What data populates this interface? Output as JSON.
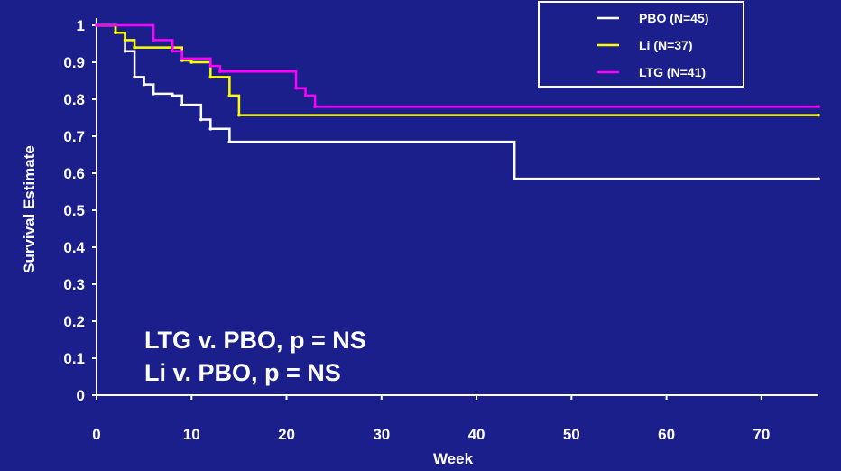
{
  "chart_data": {
    "type": "line",
    "step": true,
    "xlabel": "Week",
    "ylabel": "Survival Estimate",
    "xlim": [
      0,
      76
    ],
    "ylim": [
      0,
      1
    ],
    "xticks": [
      0,
      10,
      20,
      30,
      40,
      50,
      60,
      70
    ],
    "yticks": [
      0,
      0.1,
      0.2,
      0.3,
      0.4,
      0.5,
      0.6,
      0.7,
      0.8,
      0.9,
      1
    ],
    "ytick_labels": [
      "0",
      "0.1",
      "0.2",
      "0.3",
      "0.4",
      "0.5",
      "0.6",
      "0.7",
      "0.8",
      "0.9",
      "1"
    ],
    "grid": false,
    "legend_position": "top-right",
    "annotations": [
      "LTG v. PBO, p = NS",
      "Li v. PBO, p = NS"
    ],
    "background": "#1A1F8C",
    "series": [
      {
        "name": "PBO (N=45)",
        "color": "#FFFFFF",
        "x": [
          0,
          2,
          3,
          4,
          5,
          6,
          8,
          9,
          11,
          12,
          14,
          44,
          76
        ],
        "y": [
          1.0,
          0.98,
          0.93,
          0.86,
          0.84,
          0.815,
          0.81,
          0.785,
          0.745,
          0.72,
          0.685,
          0.585,
          0.585
        ]
      },
      {
        "name": "Li (N=37)",
        "color": "#FFFF00",
        "x": [
          0,
          2,
          3,
          4,
          9,
          10,
          12,
          14,
          15,
          76
        ],
        "y": [
          1.0,
          0.98,
          0.96,
          0.94,
          0.905,
          0.9,
          0.86,
          0.81,
          0.757,
          0.757
        ]
      },
      {
        "name": "LTG (N=41)",
        "color": "#FF00FF",
        "x": [
          0,
          6,
          8,
          9,
          12,
          13,
          21,
          22,
          23,
          76
        ],
        "y": [
          1.0,
          0.96,
          0.93,
          0.91,
          0.89,
          0.875,
          0.83,
          0.81,
          0.78,
          0.78
        ]
      }
    ]
  }
}
